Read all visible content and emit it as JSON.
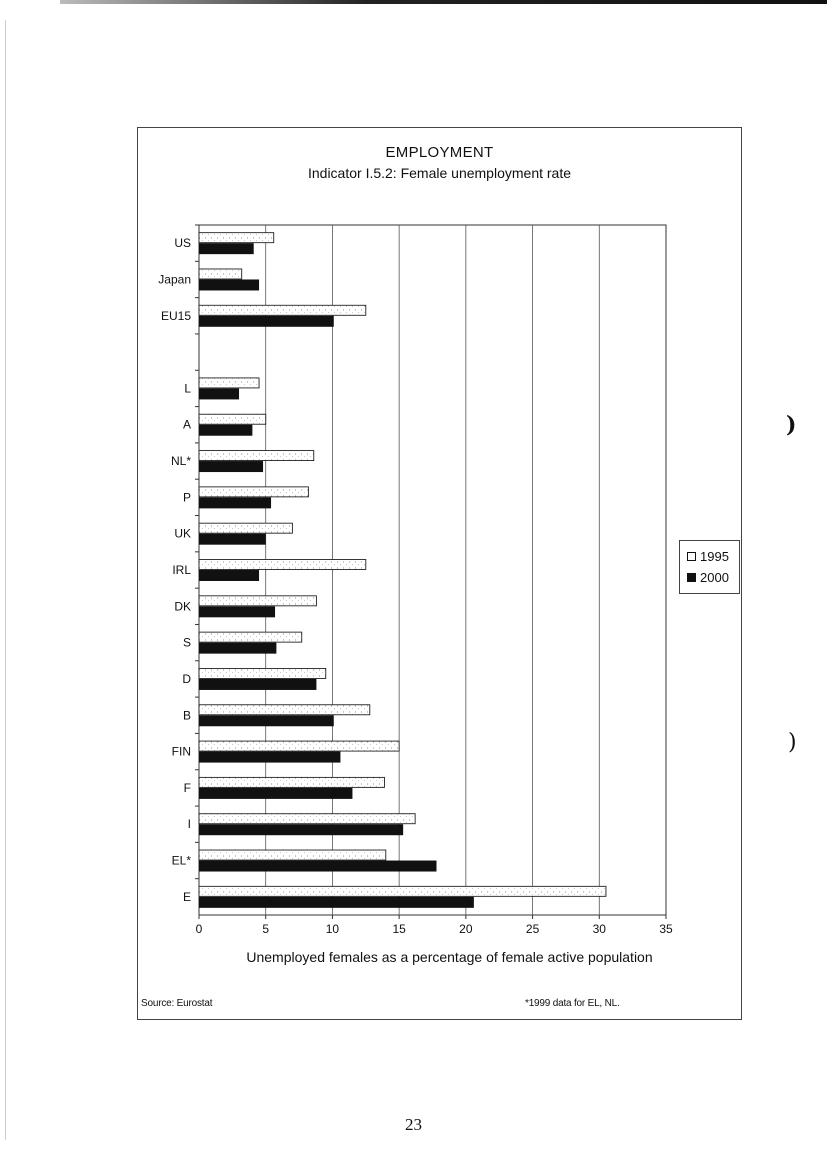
{
  "page": {
    "number": "23"
  },
  "chart": {
    "title": "EMPLOYMENT",
    "subtitle": "Indicator I.5.2: Female unemployment rate",
    "xlabel": "Unemployed females as a percentage of female active population",
    "source": "Source: Eurostat",
    "footnote": "*1999 data for EL, NL."
  },
  "legend": {
    "items": [
      "1995",
      "2000"
    ]
  },
  "colors": {
    "series_1995": "#ffffff",
    "series_2000": "#111111",
    "grid": "#555555"
  },
  "chart_data": {
    "type": "bar",
    "orientation": "horizontal",
    "categories": [
      "US",
      "Japan",
      "EU15",
      "",
      "L",
      "A",
      "NL*",
      "P",
      "UK",
      "IRL",
      "DK",
      "S",
      "D",
      "B",
      "FIN",
      "F",
      "I",
      "EL*",
      "E"
    ],
    "series": [
      {
        "name": "1995",
        "values": [
          5.6,
          3.2,
          12.5,
          null,
          4.5,
          5.0,
          8.6,
          8.2,
          7.0,
          12.5,
          8.8,
          7.7,
          9.5,
          12.8,
          15.0,
          13.9,
          16.2,
          14.0,
          30.5
        ]
      },
      {
        "name": "2000",
        "values": [
          4.1,
          4.5,
          10.1,
          null,
          3.0,
          4.0,
          4.8,
          5.4,
          5.0,
          4.5,
          5.7,
          5.8,
          8.8,
          10.1,
          10.6,
          11.5,
          15.3,
          17.8,
          20.6
        ]
      }
    ],
    "xlim": [
      0,
      35
    ],
    "xticks": [
      "0",
      "5",
      "10",
      "15",
      "20",
      "25",
      "30",
      "35"
    ],
    "grid": true,
    "legend_position": "right"
  }
}
